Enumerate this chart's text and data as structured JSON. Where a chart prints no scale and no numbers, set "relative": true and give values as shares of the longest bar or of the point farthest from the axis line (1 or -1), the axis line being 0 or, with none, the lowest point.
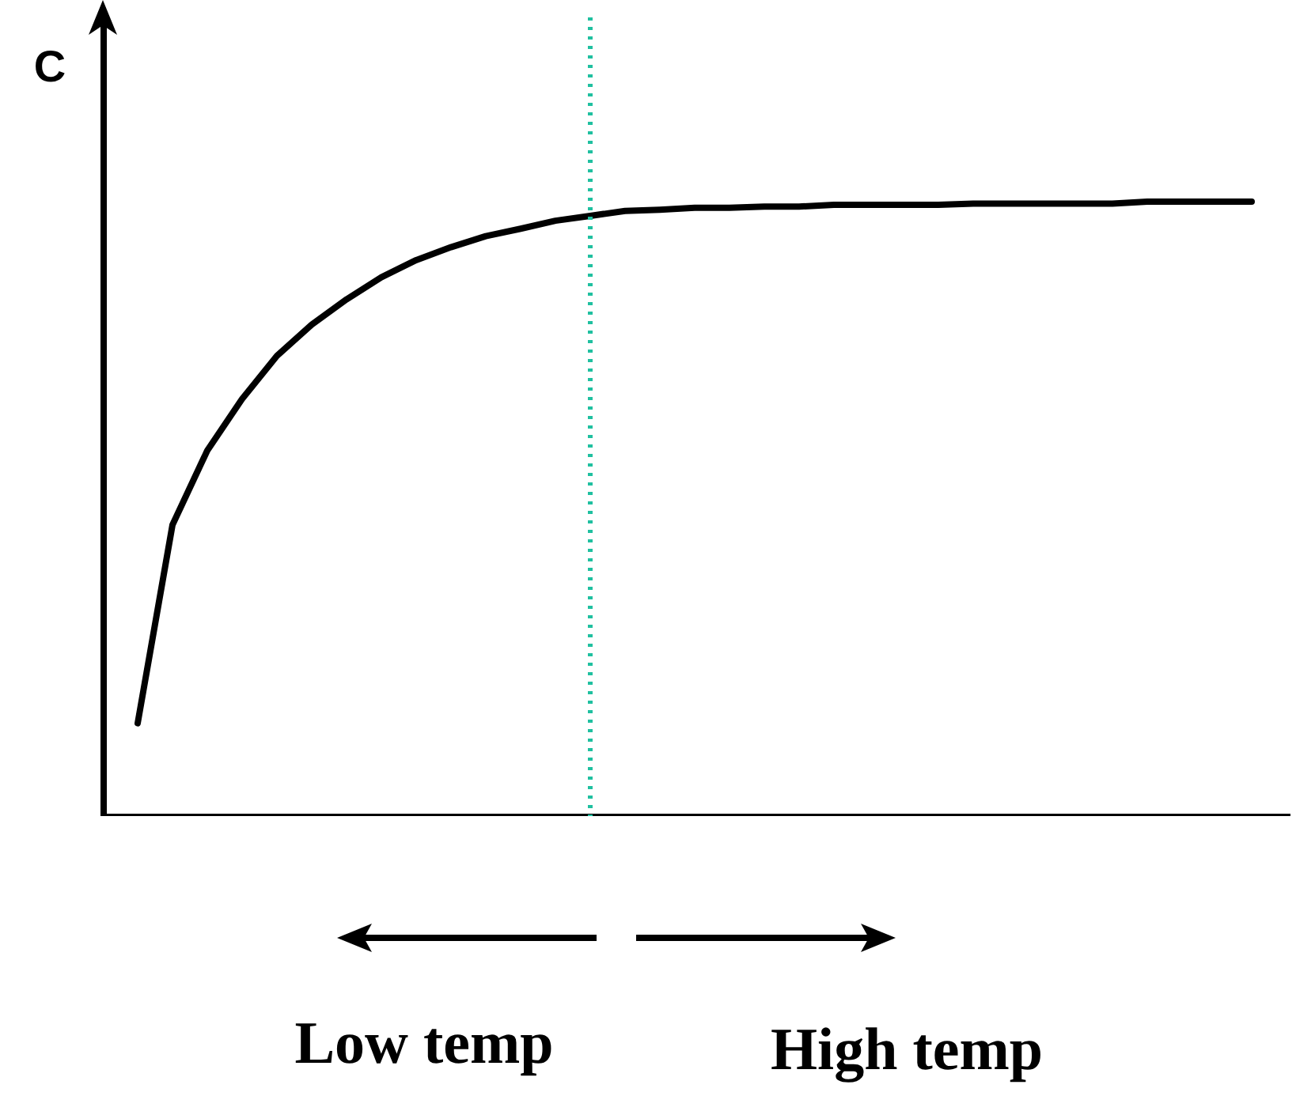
{
  "chart_data": {
    "type": "line",
    "relative": true,
    "ylabel": "C",
    "categories": [
      null,
      null,
      null,
      null,
      null,
      null,
      null,
      null,
      null,
      null,
      null,
      null,
      null,
      null,
      null,
      null,
      null,
      null,
      null,
      null,
      null,
      null,
      null,
      null,
      null,
      null,
      null,
      null,
      null,
      null,
      null,
      null,
      null
    ],
    "series": [
      {
        "color": "#000000",
        "values": [
          0.151,
          0.474,
          0.595,
          0.679,
          0.749,
          0.8,
          0.841,
          0.877,
          0.905,
          0.926,
          0.944,
          0.956,
          0.969,
          0.977,
          0.985,
          0.987,
          0.99,
          0.99,
          0.992,
          0.992,
          0.995,
          0.995,
          0.995,
          0.995,
          0.997,
          0.997,
          0.997,
          0.997,
          0.997,
          1,
          1,
          1,
          1
        ]
      }
    ],
    "annotations": [
      "Low temp",
      "High temp"
    ],
    "grid": false,
    "marker": "none",
    "line_style": "solid"
  }
}
